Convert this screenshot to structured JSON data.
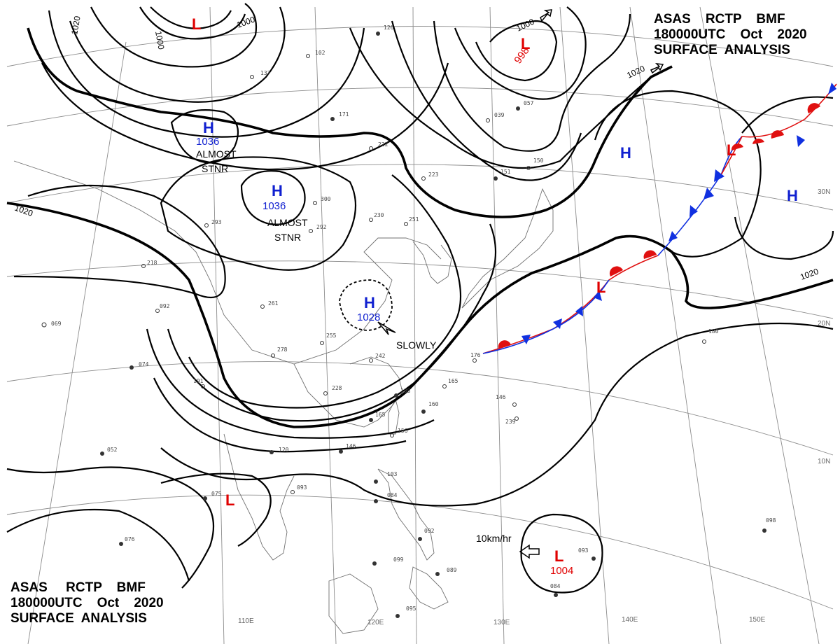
{
  "header": {
    "line1": "ASAS    RCTP    BMF",
    "line2": "180000UTC    Oct    2020",
    "line3": "SURFACE  ANALYSIS"
  },
  "footer": {
    "line1": "ASAS     RCTP    BMF",
    "line2": "180000UTC    Oct    2020",
    "line3": "SURFACE  ANALYSIS"
  },
  "longitude_labels": [
    "110E",
    "120E",
    "130E",
    "140E",
    "150E"
  ],
  "latitude_labels": [
    "30N",
    "20N",
    "10N"
  ],
  "isobar_labels": [
    "1020",
    "1000",
    "1000",
    "1000",
    "1020",
    "1020",
    "1020"
  ],
  "pressure_centers": {
    "highs": [
      {
        "letter": "H",
        "value": "1036"
      },
      {
        "letter": "H",
        "value": "1036"
      },
      {
        "letter": "H",
        "value": "1028"
      },
      {
        "letter": "H",
        "value": ""
      },
      {
        "letter": "H",
        "value": ""
      }
    ],
    "lows": [
      {
        "letter": "L",
        "value": ""
      },
      {
        "letter": "L",
        "value": "998"
      },
      {
        "letter": "L",
        "value": ""
      },
      {
        "letter": "L",
        "value": ""
      },
      {
        "letter": "L",
        "value": ""
      },
      {
        "letter": "L",
        "value": "1004"
      }
    ]
  },
  "annotations": {
    "almost_stnr_1": "ALMOST",
    "almost_stnr_1b": "STNR",
    "almost_stnr_2": "ALMOST",
    "almost_stnr_2b": "STNR",
    "slowly": "SLOWLY",
    "speed": "10km/hr"
  },
  "colors": {
    "high": "#1020d0",
    "low": "#e00000",
    "warm_front": "#e01010",
    "cold_front": "#1030e0",
    "isobar": "#000000",
    "grid": "#8c8c8c"
  },
  "station_labels": [
    "126",
    "102",
    "137",
    "171",
    "222",
    "223",
    "300",
    "292",
    "230",
    "251",
    "293",
    "218",
    "092",
    "261",
    "255",
    "278",
    "228",
    "191",
    "242",
    "188",
    "165",
    "156",
    "146",
    "120",
    "093",
    "075",
    "074",
    "069",
    "052",
    "076",
    "103",
    "084",
    "092",
    "099",
    "089",
    "095",
    "165",
    "160",
    "146",
    "176",
    "180",
    "084",
    "093",
    "098",
    "239",
    "057",
    "039",
    "151",
    "150"
  ]
}
